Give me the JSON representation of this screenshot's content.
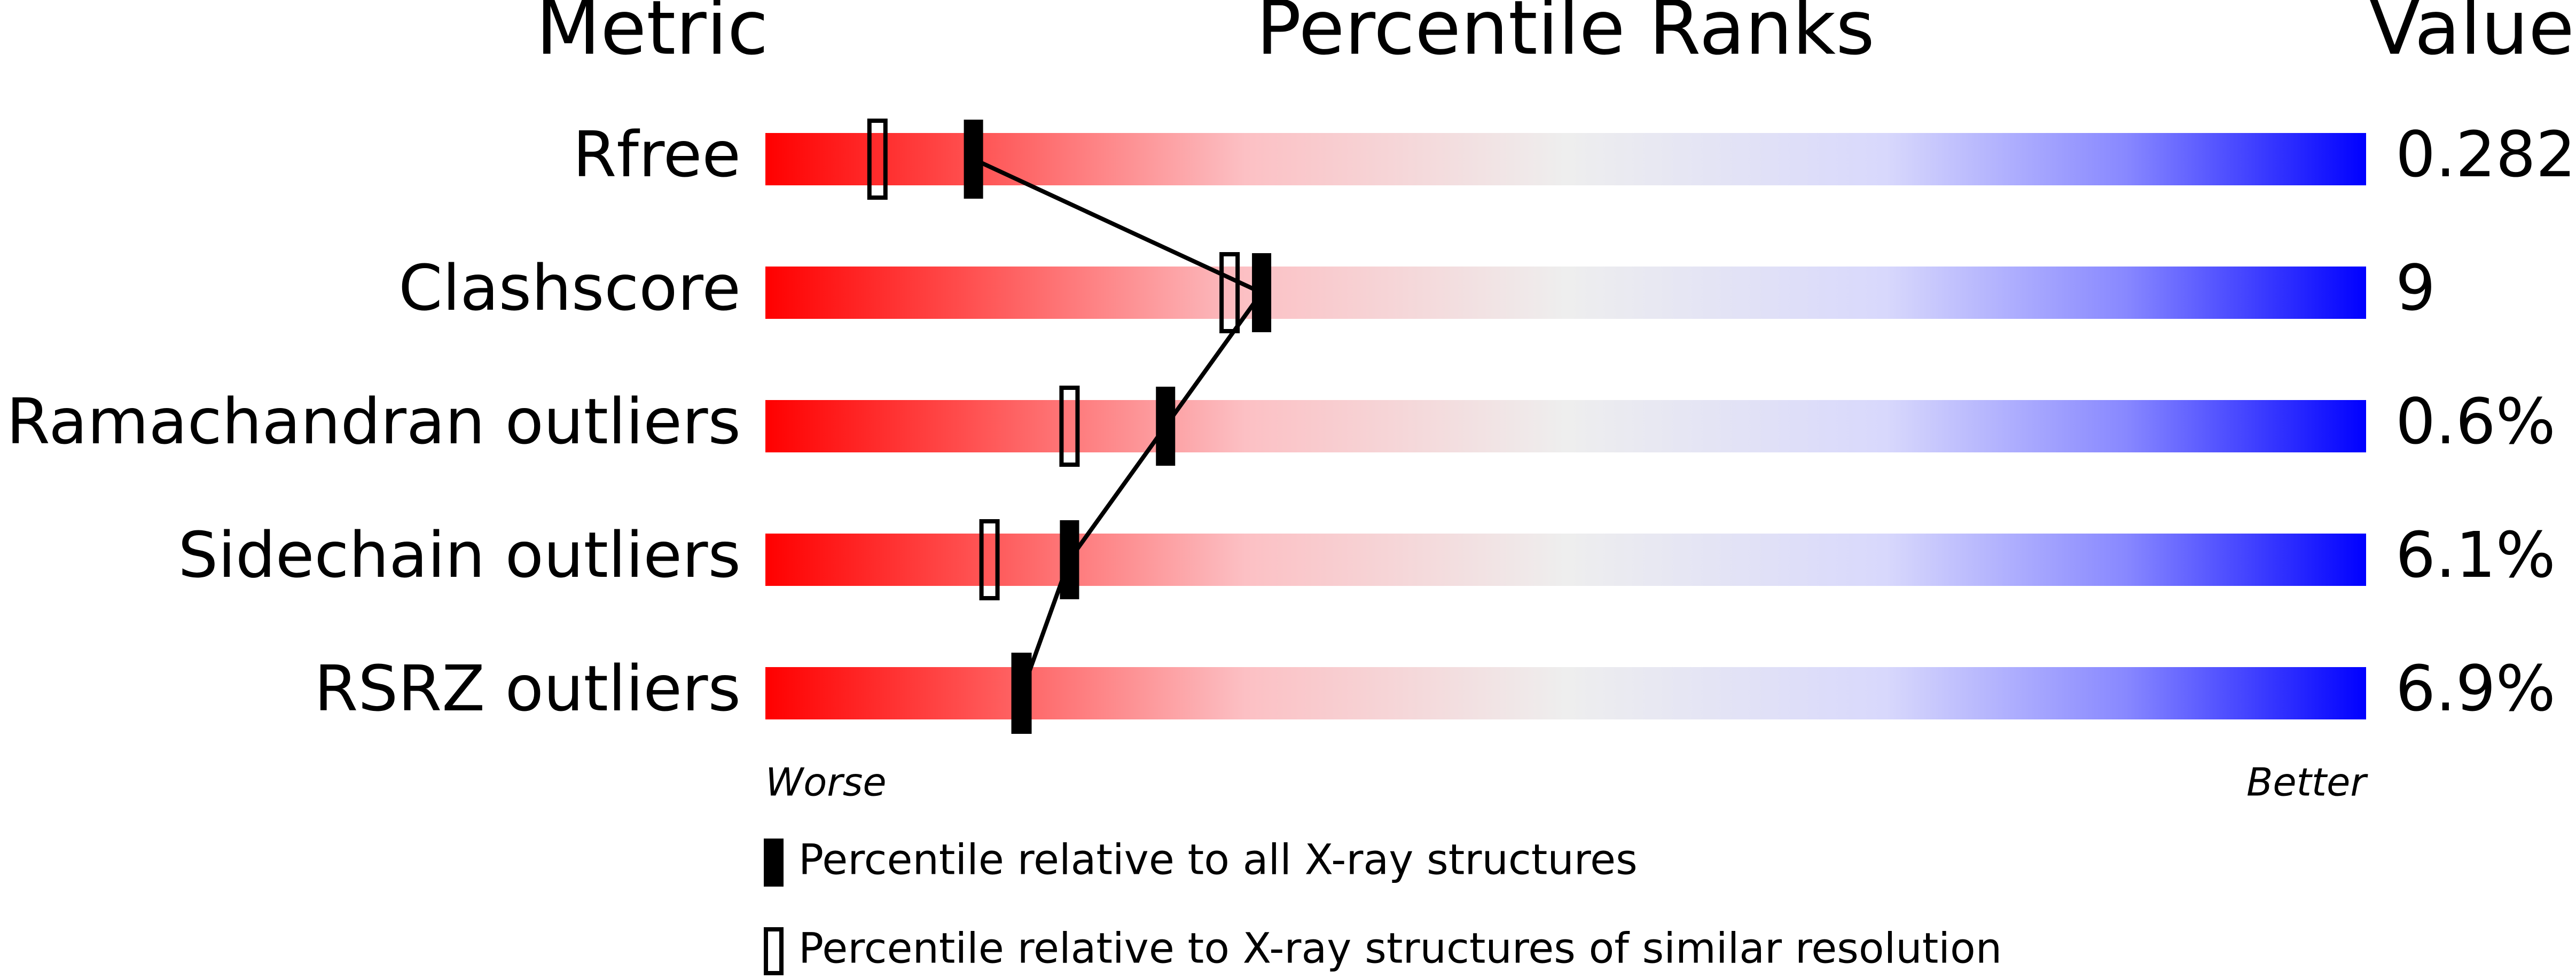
{
  "chart_data": {
    "type": "percentile-slider",
    "headers": [
      "Metric",
      "Percentile Ranks",
      "Value"
    ],
    "categories": [
      "Rfree",
      "Clashscore",
      "Ramachandran outliers",
      "Sidechain outliers",
      "RSRZ outliers"
    ],
    "values": [
      0.282,
      9,
      0.6,
      6.1,
      6.9
    ],
    "value_labels": [
      "0.282",
      "9",
      "0.6%",
      "6.1%",
      "6.9%"
    ],
    "series": [
      {
        "name": "Percentile relative to all X-ray structures",
        "color": "#000000",
        "values": [
          13,
          31,
          25,
          19,
          16
        ]
      },
      {
        "name": "Percentile relative to X-ray structures of similar resolution",
        "color": "#000000",
        "values": [
          7,
          29,
          19,
          14,
          16
        ]
      }
    ],
    "xlim": [
      0,
      100
    ],
    "xlabels": [
      "Worse",
      "Better"
    ]
  }
}
